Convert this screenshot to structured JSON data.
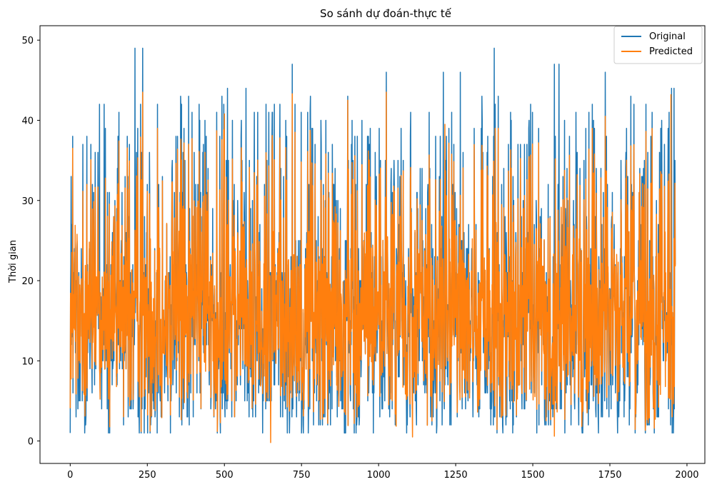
{
  "chart_data": {
    "type": "line",
    "title": "So sánh dự đoán-thực tế",
    "xlabel": "",
    "ylabel": "Thời gian",
    "xlim": [
      -98,
      2058
    ],
    "ylim": [
      -2.8,
      51.8
    ],
    "xticks": [
      0,
      250,
      500,
      750,
      1000,
      1250,
      1500,
      1750,
      2000
    ],
    "yticks": [
      0,
      10,
      20,
      30,
      40,
      50
    ],
    "grid": false,
    "legend_position": "upper-right",
    "n_points": 1963,
    "series": [
      {
        "name": "Original",
        "color": "#1f77b4",
        "summary": {
          "min": 1,
          "max": 49,
          "mean": 16
        },
        "peaks": [
          {
            "x": 3,
            "y": 33
          },
          {
            "x": 8,
            "y": 38
          },
          {
            "x": 95,
            "y": 42
          },
          {
            "x": 110,
            "y": 42
          },
          {
            "x": 210,
            "y": 49
          },
          {
            "x": 235,
            "y": 49
          },
          {
            "x": 420,
            "y": 40
          },
          {
            "x": 510,
            "y": 44
          },
          {
            "x": 570,
            "y": 44
          },
          {
            "x": 720,
            "y": 47
          },
          {
            "x": 900,
            "y": 43
          },
          {
            "x": 1025,
            "y": 46
          },
          {
            "x": 1210,
            "y": 46
          },
          {
            "x": 1265,
            "y": 46
          },
          {
            "x": 1375,
            "y": 49
          },
          {
            "x": 1570,
            "y": 47
          },
          {
            "x": 1585,
            "y": 47
          },
          {
            "x": 1640,
            "y": 41
          },
          {
            "x": 1735,
            "y": 46
          },
          {
            "x": 1950,
            "y": 44
          },
          {
            "x": 1958,
            "y": 44
          }
        ]
      },
      {
        "name": "Predicted",
        "color": "#ff7f0e",
        "summary": {
          "min": -0.2,
          "max": 43.5,
          "mean": 16
        },
        "peaks": [
          {
            "x": 8,
            "y": 36.5
          },
          {
            "x": 235,
            "y": 43.5
          },
          {
            "x": 500,
            "y": 40.8
          },
          {
            "x": 720,
            "y": 43.3
          },
          {
            "x": 900,
            "y": 42.5
          },
          {
            "x": 1025,
            "y": 43.5
          },
          {
            "x": 1215,
            "y": 39.5
          },
          {
            "x": 1735,
            "y": 40.5
          },
          {
            "x": 1948,
            "y": 43.2
          }
        ],
        "troughs": [
          {
            "x": 650,
            "y": -0.2
          },
          {
            "x": 1110,
            "y": 0.5
          },
          {
            "x": 1570,
            "y": 0.6
          }
        ]
      }
    ]
  }
}
